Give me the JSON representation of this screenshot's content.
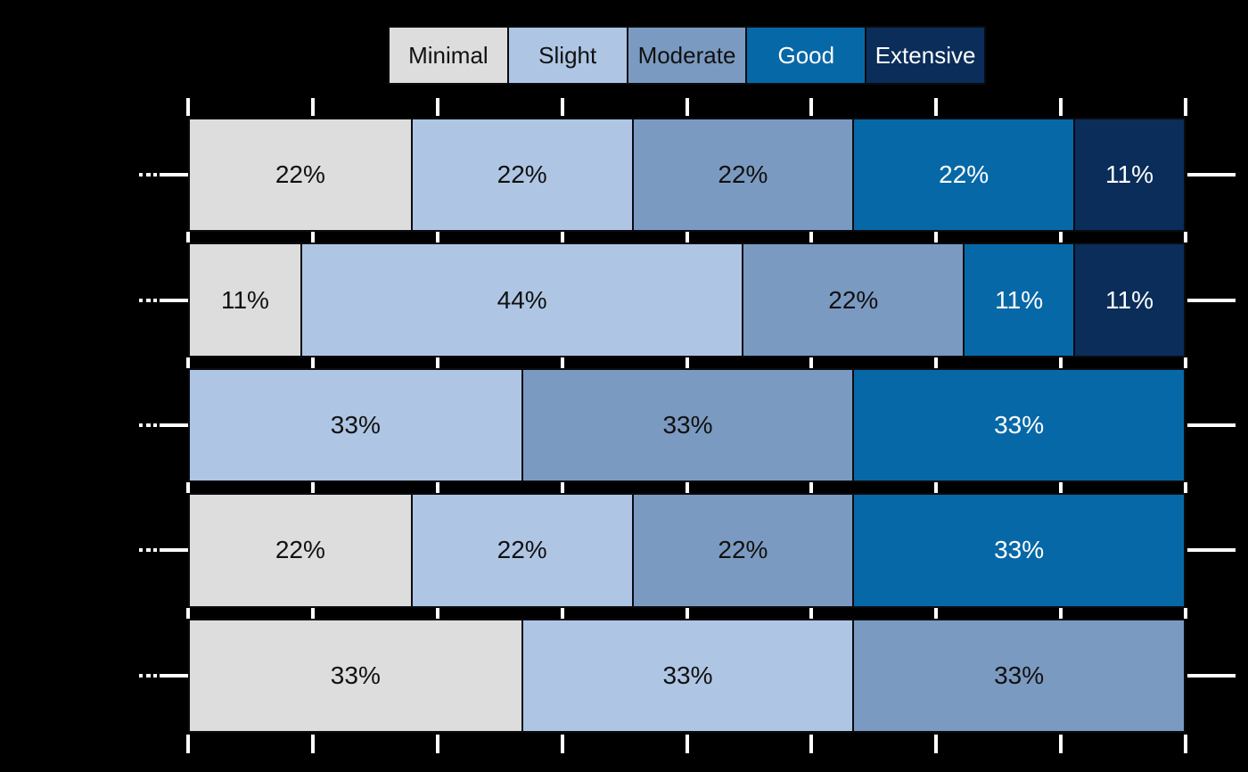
{
  "background": "#000000",
  "chart_data": {
    "type": "bar",
    "orientation": "horizontal",
    "stacked": true,
    "legend": {
      "position": "top",
      "entries": [
        {
          "label": "Minimal",
          "color": "#DDDDDD",
          "text_color": "#111111"
        },
        {
          "label": "Slight",
          "color": "#AEC6E4",
          "text_color": "#111111"
        },
        {
          "label": "Moderate",
          "color": "#7B9AC1",
          "text_color": "#111111"
        },
        {
          "label": "Good",
          "color": "#0768A7",
          "text_color": "#FFFFFF"
        },
        {
          "label": "Extensive",
          "color": "#0A2D5A",
          "text_color": "#FFFFFF"
        }
      ]
    },
    "rows": [
      {
        "segments": [
          {
            "category": "Minimal",
            "value": 22,
            "label": "22%"
          },
          {
            "category": "Slight",
            "value": 22,
            "label": "22%"
          },
          {
            "category": "Moderate",
            "value": 22,
            "label": "22%"
          },
          {
            "category": "Good",
            "value": 22,
            "label": "22%"
          },
          {
            "category": "Extensive",
            "value": 11,
            "label": "11%"
          }
        ]
      },
      {
        "segments": [
          {
            "category": "Minimal",
            "value": 11,
            "label": "11%"
          },
          {
            "category": "Slight",
            "value": 44,
            "label": "44%"
          },
          {
            "category": "Moderate",
            "value": 22,
            "label": "22%"
          },
          {
            "category": "Good",
            "value": 11,
            "label": "11%"
          },
          {
            "category": "Extensive",
            "value": 11,
            "label": "11%"
          }
        ]
      },
      {
        "segments": [
          {
            "category": "Slight",
            "value": 33,
            "label": "33%"
          },
          {
            "category": "Moderate",
            "value": 33,
            "label": "33%"
          },
          {
            "category": "Good",
            "value": 33,
            "label": "33%"
          }
        ]
      },
      {
        "segments": [
          {
            "category": "Minimal",
            "value": 22,
            "label": "22%"
          },
          {
            "category": "Slight",
            "value": 22,
            "label": "22%"
          },
          {
            "category": "Moderate",
            "value": 22,
            "label": "22%"
          },
          {
            "category": "Good",
            "value": 33,
            "label": "33%"
          }
        ]
      },
      {
        "segments": [
          {
            "category": "Minimal",
            "value": 33,
            "label": "33%"
          },
          {
            "category": "Slight",
            "value": 33,
            "label": "33%"
          },
          {
            "category": "Moderate",
            "value": 33,
            "label": "33%"
          }
        ]
      }
    ],
    "axes": {
      "x_tick_count": 9,
      "y_tick_count": 5,
      "tick_color": "#ffffff",
      "tick_labels_visible": false
    }
  }
}
